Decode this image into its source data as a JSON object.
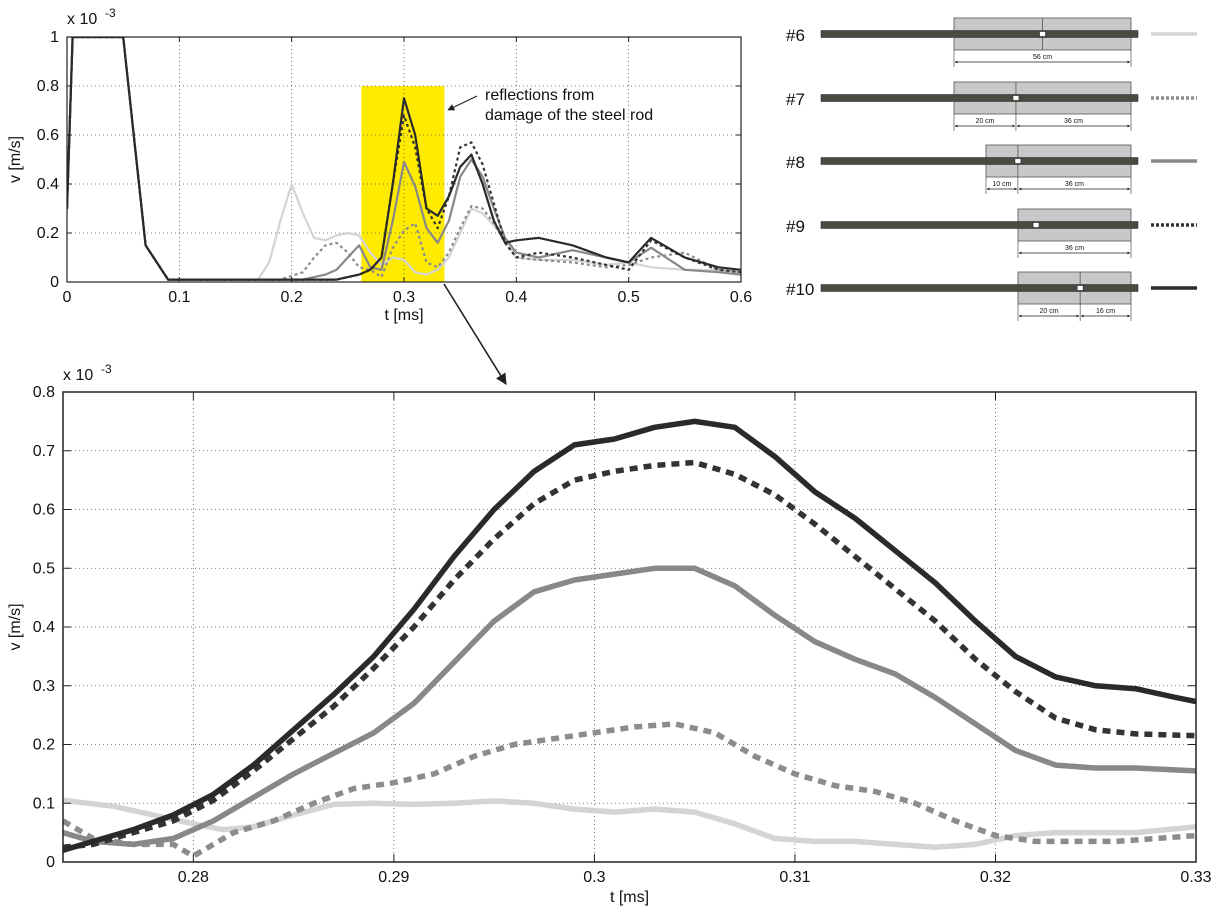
{
  "chart_data": [
    {
      "id": "overview",
      "type": "line",
      "title": "",
      "xlabel": "t [ms]",
      "ylabel": "v [m/s]",
      "y_multiplier_label": "x 10",
      "y_multiplier_exponent": "-3",
      "xlim": [
        0,
        0.6
      ],
      "ylim": [
        0,
        1
      ],
      "xticks": [
        "0",
        "0.1",
        "0.2",
        "0.3",
        "0.4",
        "0.5",
        "0.6"
      ],
      "yticks": [
        "0",
        "0.2",
        "0.4",
        "0.6",
        "0.8",
        "1"
      ],
      "grid": true,
      "highlight_region": {
        "x": [
          0.262,
          0.336
        ],
        "y": [
          0,
          0.8
        ],
        "color": "#FFEB00"
      },
      "annotation": {
        "lines": [
          "reflections from",
          "damage of the steel rod"
        ]
      },
      "series": [
        {
          "name": "#6",
          "color": "#d4d4d4",
          "dash": "solid",
          "x": [
            0,
            0.005,
            0.02,
            0.05,
            0.07,
            0.09,
            0.13,
            0.17,
            0.18,
            0.19,
            0.2,
            0.21,
            0.22,
            0.23,
            0.24,
            0.25,
            0.26,
            0.27,
            0.28,
            0.29,
            0.3,
            0.31,
            0.32,
            0.33,
            0.34,
            0.35,
            0.36,
            0.37,
            0.38,
            0.39,
            0.4,
            0.42,
            0.45,
            0.48,
            0.5,
            0.52,
            0.55,
            0.58,
            0.6
          ],
          "y": [
            0.3,
            1.0,
            1.0,
            1.0,
            0.15,
            0.01,
            0.01,
            0.01,
            0.08,
            0.25,
            0.4,
            0.28,
            0.18,
            0.17,
            0.19,
            0.2,
            0.19,
            0.12,
            0.07,
            0.1,
            0.09,
            0.04,
            0.03,
            0.05,
            0.1,
            0.2,
            0.3,
            0.28,
            0.23,
            0.18,
            0.1,
            0.09,
            0.09,
            0.07,
            0.08,
            0.06,
            0.05,
            0.05,
            0.04
          ]
        },
        {
          "name": "#7",
          "color": "#8c8c8c",
          "dash": "dot",
          "x": [
            0,
            0.005,
            0.02,
            0.05,
            0.07,
            0.09,
            0.13,
            0.19,
            0.21,
            0.22,
            0.23,
            0.24,
            0.25,
            0.26,
            0.27,
            0.28,
            0.29,
            0.3,
            0.31,
            0.32,
            0.33,
            0.34,
            0.35,
            0.36,
            0.37,
            0.38,
            0.39,
            0.4,
            0.42,
            0.45,
            0.48,
            0.5,
            0.52,
            0.55,
            0.58,
            0.6
          ],
          "y": [
            0.3,
            1.0,
            1.0,
            1.0,
            0.15,
            0.01,
            0.01,
            0.01,
            0.04,
            0.1,
            0.15,
            0.16,
            0.12,
            0.06,
            0.05,
            0.02,
            0.14,
            0.21,
            0.24,
            0.08,
            0.06,
            0.12,
            0.22,
            0.31,
            0.3,
            0.24,
            0.16,
            0.1,
            0.09,
            0.08,
            0.06,
            0.07,
            0.1,
            0.12,
            0.05,
            0.04
          ]
        },
        {
          "name": "#8",
          "color": "#888888",
          "dash": "solid",
          "x": [
            0,
            0.005,
            0.02,
            0.05,
            0.07,
            0.09,
            0.13,
            0.21,
            0.23,
            0.24,
            0.25,
            0.26,
            0.27,
            0.28,
            0.29,
            0.3,
            0.31,
            0.32,
            0.33,
            0.34,
            0.35,
            0.36,
            0.37,
            0.38,
            0.39,
            0.4,
            0.42,
            0.45,
            0.48,
            0.5,
            0.52,
            0.55,
            0.58,
            0.6
          ],
          "y": [
            0.3,
            1.0,
            1.0,
            1.0,
            0.15,
            0.01,
            0.01,
            0.01,
            0.03,
            0.05,
            0.1,
            0.15,
            0.06,
            0.05,
            0.25,
            0.49,
            0.39,
            0.22,
            0.16,
            0.25,
            0.43,
            0.5,
            0.43,
            0.3,
            0.18,
            0.12,
            0.1,
            0.13,
            0.1,
            0.08,
            0.14,
            0.05,
            0.04,
            0.03
          ]
        },
        {
          "name": "#9",
          "color": "#333333",
          "dash": "dot",
          "x": [
            0,
            0.005,
            0.02,
            0.05,
            0.07,
            0.09,
            0.13,
            0.24,
            0.25,
            0.26,
            0.27,
            0.28,
            0.29,
            0.3,
            0.31,
            0.32,
            0.33,
            0.34,
            0.35,
            0.36,
            0.37,
            0.38,
            0.39,
            0.4,
            0.42,
            0.45,
            0.48,
            0.5,
            0.52,
            0.55,
            0.58,
            0.6
          ],
          "y": [
            0.3,
            1.0,
            1.0,
            1.0,
            0.15,
            0.01,
            0.01,
            0.01,
            0.02,
            0.03,
            0.05,
            0.1,
            0.4,
            0.68,
            0.55,
            0.3,
            0.22,
            0.35,
            0.55,
            0.57,
            0.48,
            0.32,
            0.16,
            0.1,
            0.12,
            0.1,
            0.07,
            0.05,
            0.17,
            0.1,
            0.05,
            0.04
          ]
        },
        {
          "name": "#10",
          "color": "#2a2a2a",
          "dash": "solid",
          "x": [
            0,
            0.005,
            0.02,
            0.05,
            0.07,
            0.09,
            0.13,
            0.24,
            0.25,
            0.26,
            0.27,
            0.28,
            0.29,
            0.3,
            0.31,
            0.32,
            0.33,
            0.34,
            0.35,
            0.36,
            0.37,
            0.38,
            0.39,
            0.4,
            0.42,
            0.45,
            0.48,
            0.5,
            0.52,
            0.55,
            0.58,
            0.6
          ],
          "y": [
            0.3,
            1.0,
            1.0,
            1.0,
            0.15,
            0.01,
            0.01,
            0.01,
            0.02,
            0.03,
            0.05,
            0.1,
            0.4,
            0.75,
            0.6,
            0.3,
            0.27,
            0.35,
            0.47,
            0.52,
            0.4,
            0.25,
            0.16,
            0.17,
            0.18,
            0.15,
            0.1,
            0.08,
            0.18,
            0.1,
            0.06,
            0.05
          ]
        }
      ]
    },
    {
      "id": "zoom",
      "type": "line",
      "title": "",
      "xlabel": "t [ms]",
      "ylabel": "v [m/s]",
      "y_multiplier_label": "x 10",
      "y_multiplier_exponent": "-3",
      "xlim": [
        0.2735,
        0.33
      ],
      "ylim": [
        0,
        0.8
      ],
      "xticks": [
        "0.28",
        "0.29",
        "0.3",
        "0.31",
        "0.32",
        "0.33"
      ],
      "yticks": [
        "0",
        "0.1",
        "0.2",
        "0.3",
        "0.4",
        "0.5",
        "0.6",
        "0.7",
        "0.8"
      ],
      "grid": true,
      "series": [
        {
          "name": "#6",
          "color": "#d4d4d4",
          "dash": "solid",
          "x": [
            0.2735,
            0.276,
            0.278,
            0.28,
            0.2815,
            0.283,
            0.285,
            0.287,
            0.289,
            0.291,
            0.293,
            0.295,
            0.297,
            0.299,
            0.301,
            0.303,
            0.305,
            0.307,
            0.309,
            0.311,
            0.313,
            0.315,
            0.317,
            0.319,
            0.321,
            0.323,
            0.325,
            0.327,
            0.33
          ],
          "y": [
            0.105,
            0.095,
            0.08,
            0.065,
            0.055,
            0.06,
            0.08,
            0.098,
            0.1,
            0.098,
            0.1,
            0.104,
            0.1,
            0.09,
            0.085,
            0.09,
            0.085,
            0.065,
            0.04,
            0.035,
            0.035,
            0.03,
            0.025,
            0.03,
            0.045,
            0.05,
            0.05,
            0.05,
            0.06
          ]
        },
        {
          "name": "#7",
          "color": "#8c8c8c",
          "dash": "dot",
          "x": [
            0.2735,
            0.275,
            0.277,
            0.279,
            0.28,
            0.281,
            0.282,
            0.284,
            0.286,
            0.288,
            0.29,
            0.292,
            0.294,
            0.296,
            0.298,
            0.3,
            0.302,
            0.304,
            0.306,
            0.308,
            0.31,
            0.312,
            0.314,
            0.316,
            0.318,
            0.32,
            0.322,
            0.324,
            0.326,
            0.328,
            0.33
          ],
          "y": [
            0.07,
            0.04,
            0.03,
            0.03,
            0.01,
            0.03,
            0.05,
            0.07,
            0.1,
            0.125,
            0.135,
            0.15,
            0.18,
            0.2,
            0.21,
            0.22,
            0.23,
            0.235,
            0.22,
            0.18,
            0.15,
            0.13,
            0.12,
            0.1,
            0.07,
            0.045,
            0.035,
            0.035,
            0.035,
            0.04,
            0.045
          ]
        },
        {
          "name": "#8",
          "color": "#888888",
          "dash": "solid",
          "x": [
            0.2735,
            0.275,
            0.277,
            0.279,
            0.281,
            0.283,
            0.285,
            0.287,
            0.289,
            0.291,
            0.293,
            0.295,
            0.297,
            0.299,
            0.301,
            0.303,
            0.305,
            0.307,
            0.309,
            0.311,
            0.313,
            0.315,
            0.317,
            0.319,
            0.321,
            0.323,
            0.325,
            0.327,
            0.33
          ],
          "y": [
            0.05,
            0.035,
            0.03,
            0.04,
            0.07,
            0.11,
            0.15,
            0.185,
            0.22,
            0.27,
            0.34,
            0.41,
            0.46,
            0.48,
            0.49,
            0.5,
            0.5,
            0.47,
            0.42,
            0.375,
            0.345,
            0.32,
            0.28,
            0.235,
            0.19,
            0.165,
            0.16,
            0.16,
            0.155
          ]
        },
        {
          "name": "#9",
          "color": "#333333",
          "dash": "dot",
          "x": [
            0.2735,
            0.275,
            0.277,
            0.279,
            0.281,
            0.283,
            0.285,
            0.287,
            0.289,
            0.291,
            0.293,
            0.295,
            0.297,
            0.299,
            0.301,
            0.303,
            0.305,
            0.307,
            0.309,
            0.311,
            0.313,
            0.315,
            0.317,
            0.319,
            0.321,
            0.323,
            0.325,
            0.327,
            0.33
          ],
          "y": [
            0.025,
            0.03,
            0.05,
            0.07,
            0.105,
            0.155,
            0.21,
            0.265,
            0.33,
            0.4,
            0.48,
            0.55,
            0.61,
            0.65,
            0.665,
            0.675,
            0.68,
            0.66,
            0.625,
            0.575,
            0.52,
            0.465,
            0.41,
            0.345,
            0.29,
            0.245,
            0.225,
            0.218,
            0.215
          ]
        },
        {
          "name": "#10",
          "color": "#2a2a2a",
          "dash": "solid",
          "x": [
            0.2735,
            0.275,
            0.277,
            0.279,
            0.281,
            0.283,
            0.285,
            0.287,
            0.289,
            0.291,
            0.293,
            0.295,
            0.297,
            0.299,
            0.301,
            0.303,
            0.305,
            0.307,
            0.309,
            0.311,
            0.313,
            0.315,
            0.317,
            0.319,
            0.321,
            0.323,
            0.325,
            0.327,
            0.329,
            0.33
          ],
          "y": [
            0.02,
            0.035,
            0.055,
            0.08,
            0.115,
            0.165,
            0.225,
            0.285,
            0.35,
            0.43,
            0.52,
            0.6,
            0.665,
            0.71,
            0.72,
            0.74,
            0.75,
            0.74,
            0.69,
            0.63,
            0.585,
            0.53,
            0.475,
            0.41,
            0.35,
            0.315,
            0.3,
            0.295,
            0.28,
            0.273
          ]
        }
      ]
    }
  ],
  "legend": {
    "items": [
      {
        "id": "#6",
        "color": "#d4d4d4",
        "dash": "solid",
        "joints": [
          0.5
        ],
        "dims": [
          {
            "from": 0,
            "to": 1,
            "label": "56 cm"
          }
        ]
      },
      {
        "id": "#7",
        "color": "#8c8c8c",
        "dash": "dot",
        "joints": [
          0.35
        ],
        "dims": [
          {
            "from": 0,
            "to": 0.35,
            "label": "20 cm"
          },
          {
            "from": 0.35,
            "to": 1,
            "label": "36 cm"
          }
        ]
      },
      {
        "id": "#8",
        "color": "#888888",
        "dash": "solid",
        "joints": [
          0.22
        ],
        "dims": [
          {
            "from": 0,
            "to": 0.22,
            "label": "10 cm"
          },
          {
            "from": 0.22,
            "to": 1,
            "label": "36 cm"
          }
        ]
      },
      {
        "id": "#9",
        "color": "#333333",
        "dash": "dot",
        "joints": [
          0.0
        ],
        "dims": [
          {
            "from": 0,
            "to": 1,
            "label": "36 cm"
          }
        ]
      },
      {
        "id": "#10",
        "color": "#2a2a2a",
        "dash": "solid",
        "joints": [
          0.55
        ],
        "dims": [
          {
            "from": 0,
            "to": 0.55,
            "label": "20 cm"
          },
          {
            "from": 0.55,
            "to": 1,
            "label": "16 cm"
          }
        ]
      }
    ]
  }
}
